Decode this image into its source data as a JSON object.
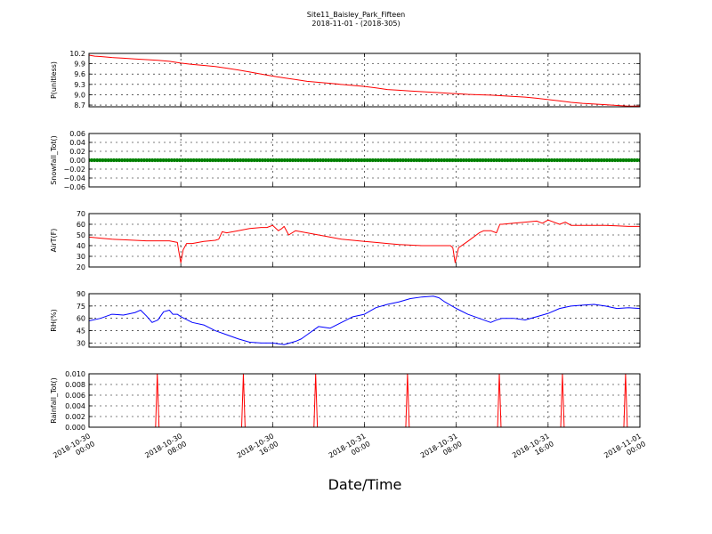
{
  "figure": {
    "title": "Site11_Baisley_Park_Fifteen",
    "subtitle": "2018-11-01 - (2018-305)",
    "xlabel": "Date/Time"
  },
  "chart_data": [
    {
      "type": "line",
      "ylabel": "P(unitless)",
      "ylim": [
        8.65,
        10.2
      ],
      "yticks": [
        8.7,
        9.0,
        9.3,
        9.6,
        9.9,
        10.2
      ],
      "ytick_labels": [
        "8.7",
        "9.0",
        "9.3",
        "9.6",
        "9.9",
        "10.2"
      ],
      "xlim": [
        0,
        48
      ],
      "grid": true,
      "series": [
        {
          "color": "#ff0000",
          "x": [
            0,
            0.5,
            1,
            2,
            3,
            4,
            5,
            6,
            7,
            8,
            9,
            10,
            11,
            12,
            13,
            14,
            15,
            16,
            17,
            18,
            19,
            20,
            21,
            22,
            23,
            24,
            25,
            26,
            27,
            28,
            29,
            30,
            31,
            32,
            33,
            34,
            35,
            36,
            37,
            38,
            39,
            40,
            41,
            42,
            43,
            44,
            45,
            46,
            47,
            48
          ],
          "y": [
            10.15,
            10.12,
            10.11,
            10.08,
            10.06,
            10.04,
            10.02,
            10.0,
            9.97,
            9.92,
            9.88,
            9.85,
            9.82,
            9.77,
            9.72,
            9.66,
            9.6,
            9.54,
            9.49,
            9.44,
            9.39,
            9.36,
            9.33,
            9.3,
            9.27,
            9.24,
            9.2,
            9.15,
            9.13,
            9.11,
            9.09,
            9.07,
            9.05,
            9.03,
            9.01,
            9.0,
            8.99,
            8.97,
            8.95,
            8.93,
            8.9,
            8.86,
            8.82,
            8.78,
            8.75,
            8.73,
            8.71,
            8.69,
            8.67,
            8.67
          ]
        }
      ]
    },
    {
      "type": "scatter",
      "ylabel": "Snowfall_Tot()",
      "ylim": [
        -0.06,
        0.06
      ],
      "yticks": [
        -0.06,
        -0.04,
        -0.02,
        0.0,
        0.02,
        0.04,
        0.06
      ],
      "ytick_labels": [
        "−0.06",
        "−0.04",
        "−0.02",
        "0.00",
        "0.02",
        "0.04",
        "0.06"
      ],
      "xlim": [
        0,
        48
      ],
      "grid": true,
      "series": [
        {
          "color": "#008000",
          "x_range": [
            0,
            48
          ],
          "constant_y": 0.0
        }
      ]
    },
    {
      "type": "line",
      "ylabel": "AirT(F)",
      "ylim": [
        20,
        70
      ],
      "yticks": [
        20,
        30,
        40,
        50,
        60,
        70
      ],
      "ytick_labels": [
        "20",
        "30",
        "40",
        "50",
        "60",
        "70"
      ],
      "xlim": [
        0,
        48
      ],
      "grid": true,
      "series": [
        {
          "color": "#ff0000",
          "x": [
            0,
            1,
            2,
            3,
            4,
            5,
            6,
            7,
            7.7,
            7.8,
            8.0,
            8.2,
            8.5,
            9,
            10,
            11,
            11.3,
            11.6,
            12,
            13,
            14,
            15,
            15.5,
            16,
            16.5,
            16.8,
            17,
            17.4,
            18,
            19,
            20,
            21,
            22,
            23,
            24,
            25,
            26,
            27,
            28,
            29,
            30,
            31,
            31.5,
            31.7,
            31.9,
            32.2,
            32.6,
            33,
            34,
            34.4,
            35,
            35.5,
            35.8,
            36,
            37,
            38,
            39,
            39.5,
            40,
            41,
            41.5,
            42,
            43,
            44,
            45,
            46,
            47,
            48
          ],
          "y": [
            48,
            47,
            46,
            45.5,
            45,
            44.5,
            44.5,
            44.5,
            43,
            36,
            24,
            36,
            42,
            42,
            44,
            45,
            46,
            53,
            52,
            54,
            56,
            57,
            57,
            59,
            54,
            56,
            58,
            50,
            54,
            52,
            50,
            48,
            46,
            45,
            44,
            43,
            42,
            41,
            40.5,
            40,
            40,
            40,
            40,
            38,
            24,
            38,
            41,
            44,
            52,
            54,
            54,
            52,
            60,
            60,
            61,
            62,
            63,
            61,
            64,
            60,
            62,
            59,
            59,
            59,
            59,
            58.5,
            58,
            58
          ]
        }
      ]
    },
    {
      "type": "line",
      "ylabel": "RH(%)",
      "ylim": [
        25,
        90
      ],
      "yticks": [
        30,
        45,
        60,
        75,
        90
      ],
      "ytick_labels": [
        "30",
        "45",
        "60",
        "75",
        "90"
      ],
      "xlim": [
        0,
        48
      ],
      "grid": true,
      "series": [
        {
          "color": "#0000ff",
          "x": [
            0,
            1,
            2,
            3,
            4,
            4.5,
            5,
            5.5,
            6,
            6.5,
            7,
            7.3,
            7.7,
            8,
            9,
            10,
            11,
            12,
            13,
            14,
            15,
            16,
            17,
            17.5,
            18,
            18.5,
            19,
            20,
            21,
            22,
            23,
            24,
            25,
            26,
            27,
            28,
            29,
            30,
            30.5,
            31,
            32,
            33,
            34,
            35,
            35.5,
            36,
            37,
            38,
            39,
            40,
            41,
            42,
            43,
            44,
            45,
            46,
            47,
            48
          ],
          "y": [
            57,
            60,
            65,
            64,
            67,
            70,
            63,
            55,
            58,
            68,
            70,
            65,
            65,
            62,
            55,
            52,
            45,
            40,
            35,
            31,
            30,
            30,
            28,
            30,
            32,
            35,
            40,
            50,
            48,
            55,
            62,
            65,
            73,
            77,
            80,
            84,
            86,
            87,
            85,
            80,
            72,
            65,
            60,
            55,
            58,
            60,
            60,
            58,
            62,
            66,
            72,
            75,
            76,
            77,
            75,
            72,
            73,
            72
          ]
        }
      ]
    },
    {
      "type": "line",
      "ylabel": "Rainfall_Tot()",
      "ylim": [
        0,
        0.01
      ],
      "yticks": [
        0.0,
        0.002,
        0.004,
        0.006,
        0.008,
        0.01
      ],
      "ytick_labels": [
        "0.000",
        "0.002",
        "0.004",
        "0.006",
        "0.008",
        "0.010"
      ],
      "xlim": [
        0,
        48
      ],
      "grid": true,
      "series": [
        {
          "color": "#ff0000",
          "x": [
            0,
            5.8,
            5.95,
            6.1,
            13.3,
            13.45,
            13.6,
            19.6,
            19.75,
            19.9,
            27.6,
            27.75,
            27.9,
            35.6,
            35.75,
            35.9,
            41.1,
            41.25,
            41.4,
            46.6,
            46.75,
            46.9,
            48
          ],
          "y": [
            0,
            0,
            0.01,
            0,
            0,
            0.01,
            0,
            0,
            0.01,
            0,
            0,
            0.01,
            0,
            0,
            0.01,
            0,
            0,
            0.01,
            0,
            0,
            0.01,
            0,
            0
          ]
        }
      ]
    }
  ],
  "x_axis": {
    "tick_values": [
      0,
      8,
      16,
      24,
      32,
      40,
      48
    ],
    "tick_labels": [
      [
        "2018-10-30",
        "00:00"
      ],
      [
        "2018-10-30",
        "08:00"
      ],
      [
        "2018-10-30",
        "16:00"
      ],
      [
        "2018-10-31",
        "00:00"
      ],
      [
        "2018-10-31",
        "08:00"
      ],
      [
        "2018-10-31",
        "16:00"
      ],
      [
        "2018-11-01",
        "00:00"
      ]
    ]
  }
}
